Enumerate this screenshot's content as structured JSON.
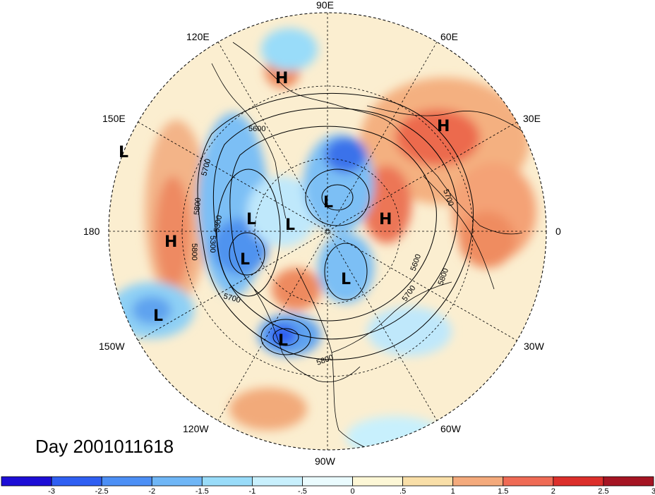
{
  "title": "Day 2001011618",
  "longitude_labels": {
    "lon_90e": "90E",
    "lon_120e": "120E",
    "lon_60e": "60E",
    "lon_150e": "150E",
    "lon_30e": "30E",
    "lon_180": "180",
    "lon_0": "0",
    "lon_150w": "150W",
    "lon_30w": "30W",
    "lon_120w": "120W",
    "lon_60w": "60W",
    "lon_90w": "90W"
  },
  "pressure_centers": [
    {
      "type": "H",
      "location": "East Siberia"
    },
    {
      "type": "H",
      "location": "Northern Europe"
    },
    {
      "type": "H",
      "location": "Scandinavia"
    },
    {
      "type": "H",
      "location": "North Pacific"
    },
    {
      "type": "L",
      "location": "Bering Sea region"
    },
    {
      "type": "L",
      "location": "Siberian Arctic"
    },
    {
      "type": "L",
      "location": "Central Arctic"
    },
    {
      "type": "L",
      "location": "Kara Sea"
    },
    {
      "type": "L",
      "location": "Alaska"
    },
    {
      "type": "L",
      "location": "Baffin Bay"
    },
    {
      "type": "L",
      "location": "North Pacific"
    },
    {
      "type": "L",
      "location": "Central United States"
    }
  ],
  "contour_labels": [
    "5300",
    "5600",
    "5700",
    "5800",
    "5700",
    "5800",
    "5300",
    "5700",
    "5600",
    "5700",
    "5800",
    "5800"
  ],
  "colorbar": {
    "labels": [
      "-3",
      "-2.5",
      "-2",
      "-1.5",
      "-1",
      "-.5",
      "0",
      ".5",
      "1",
      "1.5",
      "2",
      "2.5",
      "3"
    ],
    "colors": [
      "#1d0ed6",
      "#2f5ff2",
      "#4c8ff5",
      "#6fb6f6",
      "#99dcf9",
      "#c8f0fd",
      "#eafbfe",
      "#fdf7d6",
      "#f9dfa8",
      "#f4aa7c",
      "#ef6b55",
      "#dc2f2b",
      "#a51523"
    ]
  },
  "colors": {
    "land_outline": "#000000",
    "grid": "#000000",
    "contour": "#000000"
  }
}
